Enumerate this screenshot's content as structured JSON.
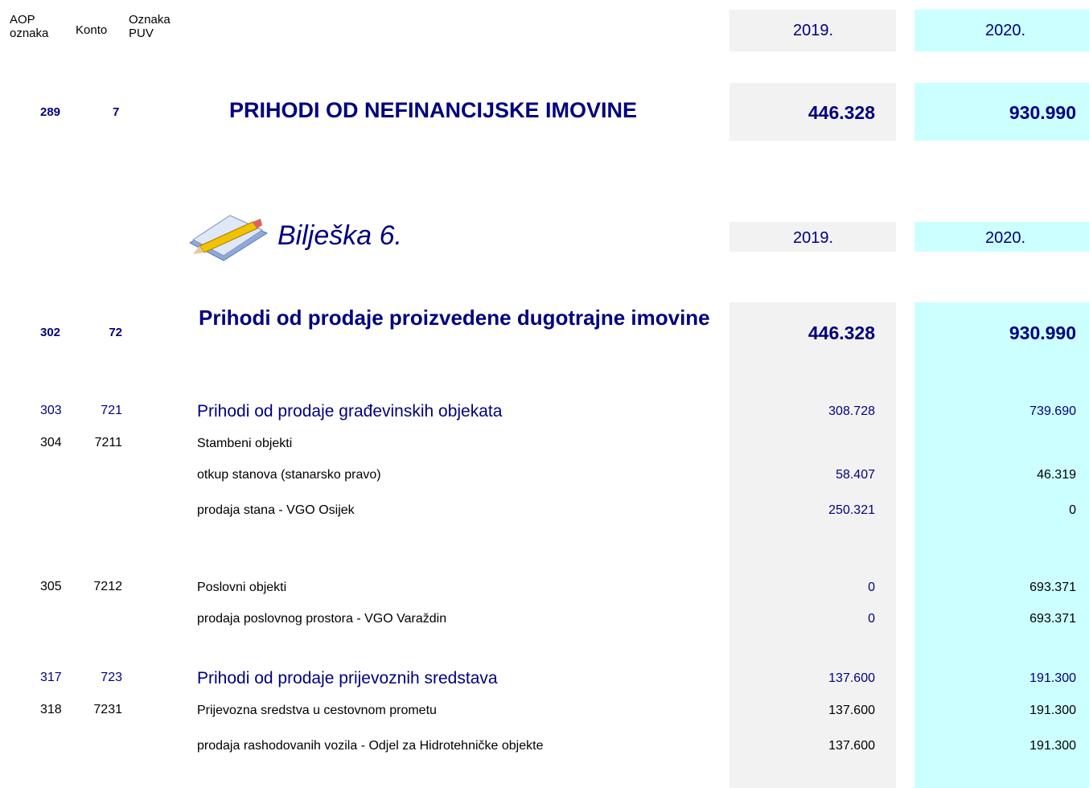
{
  "header": {
    "aop_line1": "AOP",
    "aop_line2": "oznaka",
    "konto": "Konto",
    "puv_line1": "Oznaka",
    "puv_line2": "PUV",
    "year1": "2019.",
    "year2": "2020."
  },
  "main": {
    "aop": "289",
    "konto": "7",
    "title": "PRIHODI OD NEFINANCIJSKE IMOVINE",
    "v2019": "446.328",
    "v2020": "930.990"
  },
  "note": {
    "title": "Bilješka 6.",
    "year1": "2019.",
    "year2": "2020."
  },
  "rows": [
    {
      "aop": "302",
      "konto": "72",
      "label": "Prihodi od prodaje proizvedene dugotrajne imovine",
      "v2019": "446.328",
      "v2020": "930.990"
    },
    {
      "aop": "303",
      "konto": "721",
      "label": "Prihodi od prodaje građevinskih objekata",
      "v2019": "308.728",
      "v2020": "739.690"
    },
    {
      "aop": "304",
      "konto": "7211",
      "label": "Stambeni objekti"
    },
    {
      "label": "otkup stanova (stanarsko pravo)",
      "v2019": "58.407",
      "v2020": "46.319"
    },
    {
      "label": "prodaja stana - VGO Osijek",
      "v2019": "250.321",
      "v2020": "0"
    },
    {
      "aop": "305",
      "konto": "7212",
      "label": "Poslovni objekti",
      "v2019": "0",
      "v2020": "693.371"
    },
    {
      "label": "prodaja poslovnog prostora - VGO Varaždin",
      "v2019": "0",
      "v2020": "693.371"
    },
    {
      "aop": "317",
      "konto": "723",
      "label": "Prihodi od prodaje prijevoznih sredstava",
      "v2019": "137.600",
      "v2020": "191.300"
    },
    {
      "aop": "318",
      "konto": "7231",
      "label": "Prijevozna sredstva u cestovnom prometu",
      "v2019": "137.600",
      "v2020": "191.300"
    },
    {
      "label": "prodaja rashodovanih vozila - Odjel za Hidrotehničke objekte",
      "v2019": "137.600",
      "v2020": "191.300"
    }
  ]
}
